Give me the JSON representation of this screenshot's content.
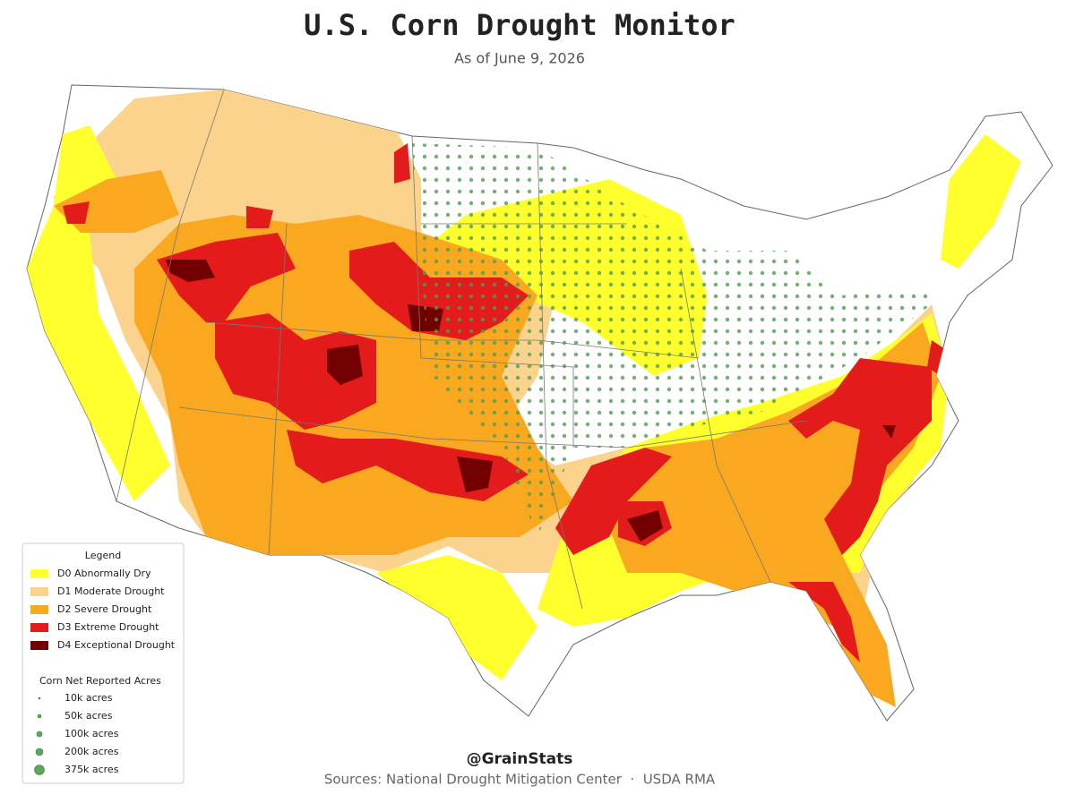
{
  "header": {
    "title": "U.S. Corn Drought Monitor",
    "subtitle": "As of June 9, 2026"
  },
  "legend": {
    "title": "Legend",
    "drought_levels": [
      {
        "label": "D0 Abnormally Dry",
        "color": "#ffff2e"
      },
      {
        "label": "D1 Moderate Drought",
        "color": "#fcd38d"
      },
      {
        "label": "D2 Severe Drought",
        "color": "#f9a81f"
      },
      {
        "label": "D3 Extreme Drought",
        "color": "#e41b1b"
      },
      {
        "label": "D4 Exceptional Drought",
        "color": "#730000"
      }
    ],
    "acres_title": "Corn Net Reported Acres",
    "acres_color": "#5aa85a",
    "acres": [
      "10k acres",
      "50k acres",
      "100k acres",
      "200k acres",
      "375k acres"
    ]
  },
  "footer": {
    "handle": "@GrainStats",
    "sources": "Sources: National Drought Mitigation Center  ·  USDA RMA"
  }
}
